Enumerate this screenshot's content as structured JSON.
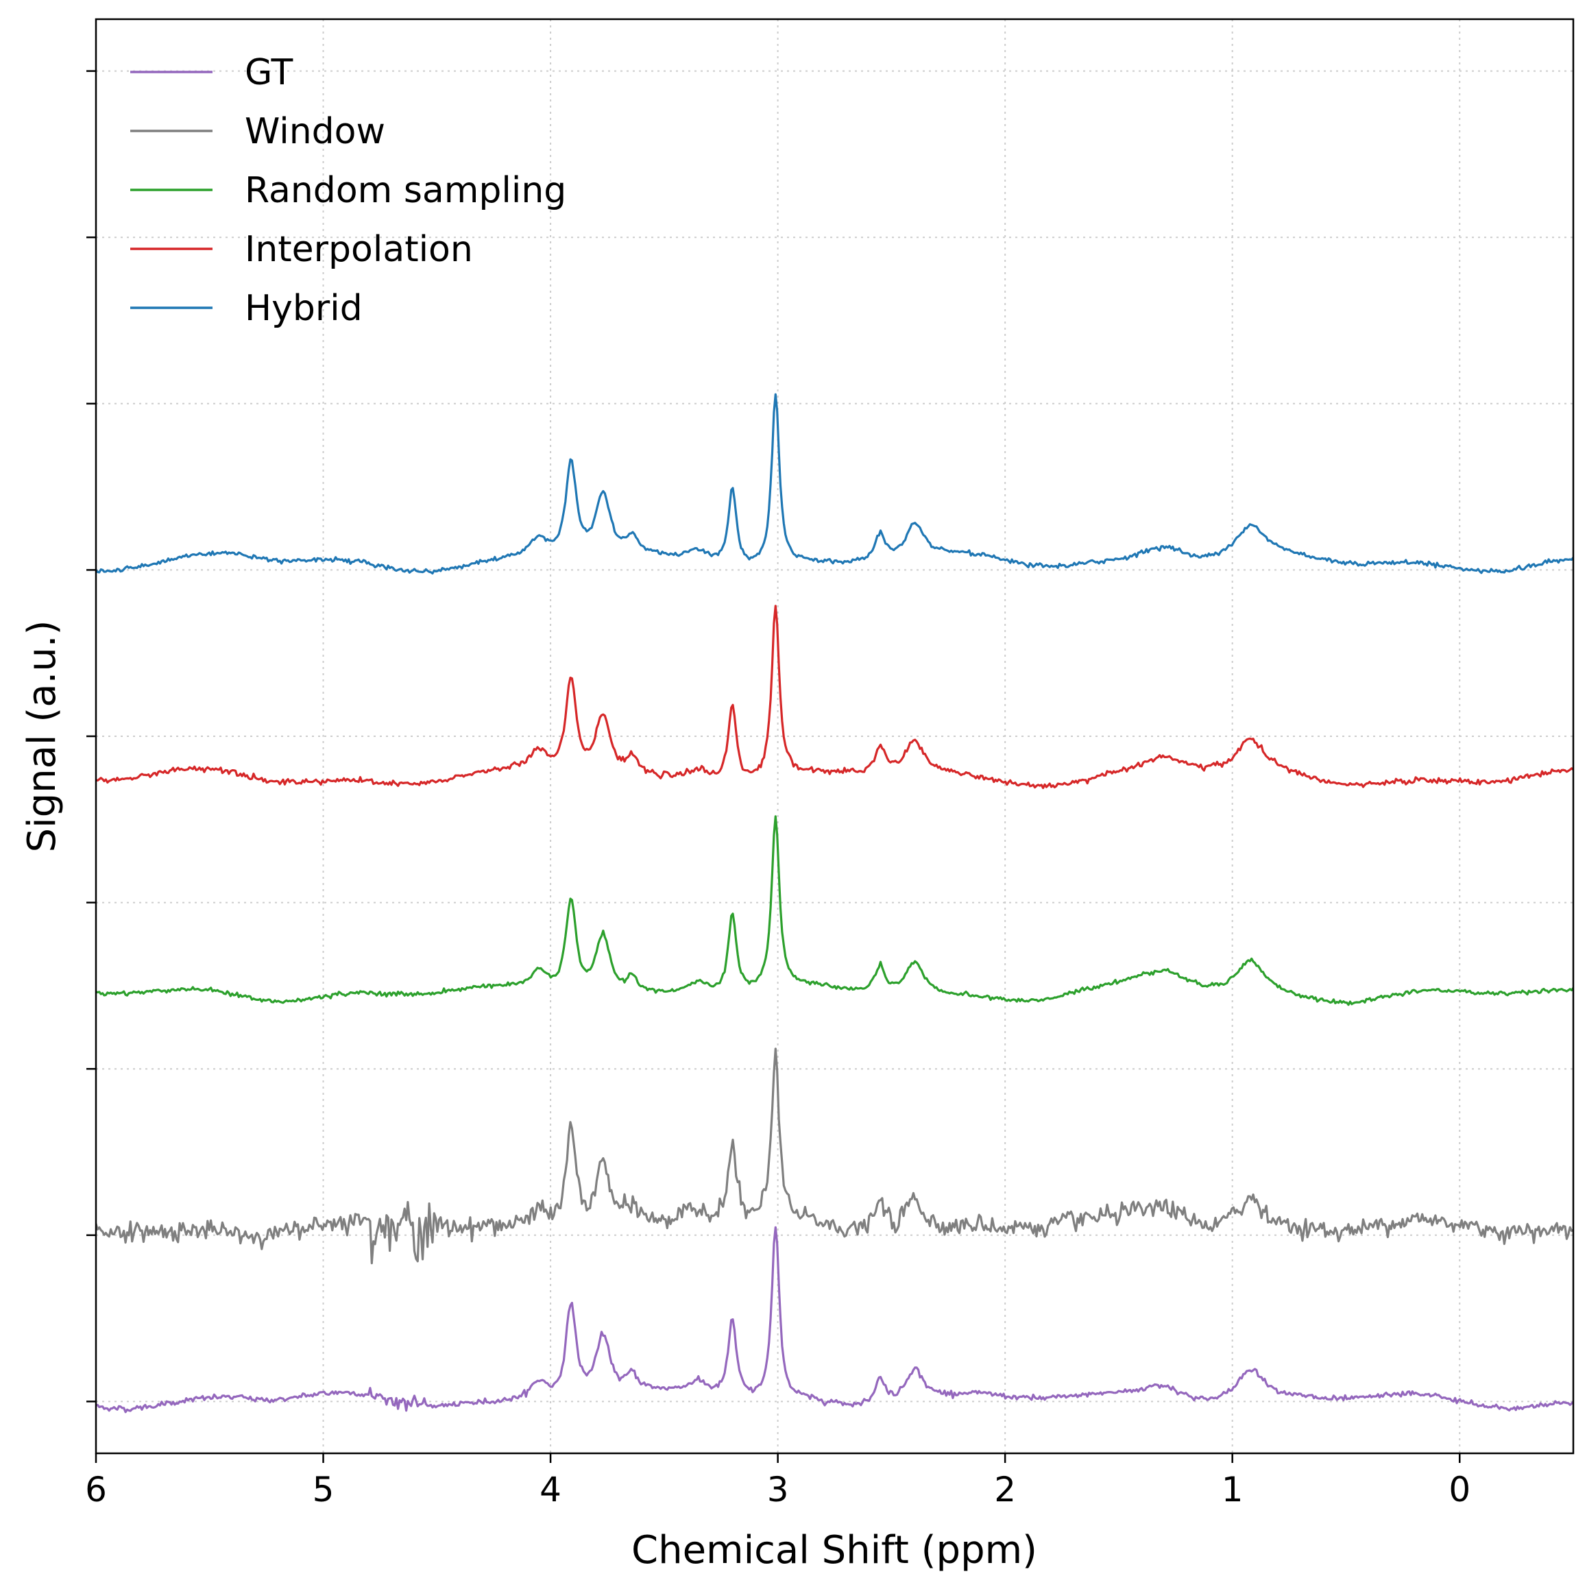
{
  "chart_data": {
    "type": "line",
    "title": "",
    "xlabel": "Chemical Shift (ppm)",
    "ylabel": "Signal (a.u.)",
    "xlim": [
      6.0,
      -0.5
    ],
    "x_ticks": [
      6,
      5,
      4,
      3,
      2,
      1,
      0
    ],
    "x_tick_labels": [
      "6",
      "5",
      "4",
      "3",
      "2",
      "1",
      "0"
    ],
    "y_ticks_count": 9,
    "y_tick_labels_shown": false,
    "grid": true,
    "legend": "top-left",
    "series": [
      {
        "name": "GT",
        "color": "#9467bd",
        "offset": 0.0,
        "noise": 0.01,
        "peaks": [
          {
            "ppm": 3.01,
            "height": 1.0,
            "width": 0.02
          },
          {
            "ppm": 3.2,
            "height": 0.46,
            "width": 0.022
          },
          {
            "ppm": 3.91,
            "height": 0.56,
            "width": 0.028
          },
          {
            "ppm": 3.77,
            "height": 0.36,
            "width": 0.04
          },
          {
            "ppm": 4.05,
            "height": 0.12,
            "width": 0.05
          },
          {
            "ppm": 3.64,
            "height": 0.1,
            "width": 0.03
          },
          {
            "ppm": 3.35,
            "height": 0.08,
            "width": 0.06
          },
          {
            "ppm": 2.55,
            "height": 0.16,
            "width": 0.03
          },
          {
            "ppm": 2.4,
            "height": 0.2,
            "width": 0.05
          },
          {
            "ppm": 1.3,
            "height": 0.12,
            "width": 0.13
          },
          {
            "ppm": 0.92,
            "height": 0.18,
            "width": 0.07
          },
          {
            "ppm": 5.4,
            "height": 0.03,
            "width": 0.15
          }
        ]
      },
      {
        "name": "Window",
        "color": "#7f7f7f",
        "offset": 1.0,
        "noise": 0.035,
        "peaks": [
          {
            "ppm": 3.01,
            "height": 1.0,
            "width": 0.02
          },
          {
            "ppm": 3.2,
            "height": 0.46,
            "width": 0.022
          },
          {
            "ppm": 3.91,
            "height": 0.58,
            "width": 0.028
          },
          {
            "ppm": 3.77,
            "height": 0.38,
            "width": 0.04
          },
          {
            "ppm": 4.05,
            "height": 0.12,
            "width": 0.05
          },
          {
            "ppm": 3.64,
            "height": 0.1,
            "width": 0.03
          },
          {
            "ppm": 3.35,
            "height": 0.08,
            "width": 0.06
          },
          {
            "ppm": 2.55,
            "height": 0.18,
            "width": 0.03
          },
          {
            "ppm": 2.4,
            "height": 0.2,
            "width": 0.05
          },
          {
            "ppm": 1.3,
            "height": 0.12,
            "width": 0.13
          },
          {
            "ppm": 0.92,
            "height": 0.18,
            "width": 0.07
          }
        ]
      },
      {
        "name": "Random sampling",
        "color": "#2ca02c",
        "offset": 2.35,
        "noise": 0.008,
        "peaks": [
          {
            "ppm": 3.01,
            "height": 1.0,
            "width": 0.02
          },
          {
            "ppm": 3.2,
            "height": 0.46,
            "width": 0.022
          },
          {
            "ppm": 3.91,
            "height": 0.56,
            "width": 0.028
          },
          {
            "ppm": 3.77,
            "height": 0.36,
            "width": 0.04
          },
          {
            "ppm": 4.05,
            "height": 0.12,
            "width": 0.05
          },
          {
            "ppm": 3.64,
            "height": 0.1,
            "width": 0.03
          },
          {
            "ppm": 3.35,
            "height": 0.08,
            "width": 0.06
          },
          {
            "ppm": 2.55,
            "height": 0.16,
            "width": 0.03
          },
          {
            "ppm": 2.4,
            "height": 0.2,
            "width": 0.05
          },
          {
            "ppm": 1.3,
            "height": 0.12,
            "width": 0.13
          },
          {
            "ppm": 0.92,
            "height": 0.18,
            "width": 0.07
          },
          {
            "ppm": 5.4,
            "height": 0.03,
            "width": 0.15
          }
        ]
      },
      {
        "name": "Interpolation",
        "color": "#d62728",
        "offset": 3.6,
        "noise": 0.01,
        "peaks": [
          {
            "ppm": 3.01,
            "height": 1.0,
            "width": 0.02
          },
          {
            "ppm": 3.2,
            "height": 0.46,
            "width": 0.022
          },
          {
            "ppm": 3.91,
            "height": 0.56,
            "width": 0.028
          },
          {
            "ppm": 3.77,
            "height": 0.36,
            "width": 0.04
          },
          {
            "ppm": 4.05,
            "height": 0.12,
            "width": 0.05
          },
          {
            "ppm": 3.64,
            "height": 0.1,
            "width": 0.03
          },
          {
            "ppm": 3.35,
            "height": 0.08,
            "width": 0.06
          },
          {
            "ppm": 2.55,
            "height": 0.16,
            "width": 0.03
          },
          {
            "ppm": 2.4,
            "height": 0.2,
            "width": 0.05
          },
          {
            "ppm": 1.3,
            "height": 0.12,
            "width": 0.13
          },
          {
            "ppm": 0.92,
            "height": 0.18,
            "width": 0.07
          },
          {
            "ppm": 5.4,
            "height": 0.03,
            "width": 0.15
          }
        ]
      },
      {
        "name": "Hybrid",
        "color": "#1f77b4",
        "offset": 4.85,
        "noise": 0.008,
        "peaks": [
          {
            "ppm": 3.01,
            "height": 1.0,
            "width": 0.02
          },
          {
            "ppm": 3.2,
            "height": 0.46,
            "width": 0.022
          },
          {
            "ppm": 3.91,
            "height": 0.56,
            "width": 0.028
          },
          {
            "ppm": 3.77,
            "height": 0.36,
            "width": 0.04
          },
          {
            "ppm": 4.05,
            "height": 0.12,
            "width": 0.05
          },
          {
            "ppm": 3.64,
            "height": 0.1,
            "width": 0.03
          },
          {
            "ppm": 3.35,
            "height": 0.08,
            "width": 0.06
          },
          {
            "ppm": 2.55,
            "height": 0.16,
            "width": 0.03
          },
          {
            "ppm": 2.4,
            "height": 0.2,
            "width": 0.05
          },
          {
            "ppm": 1.3,
            "height": 0.12,
            "width": 0.13
          },
          {
            "ppm": 0.92,
            "height": 0.18,
            "width": 0.07
          },
          {
            "ppm": 5.4,
            "height": 0.03,
            "width": 0.15
          }
        ]
      }
    ],
    "ylim": [
      -0.3,
      8.0
    ]
  }
}
